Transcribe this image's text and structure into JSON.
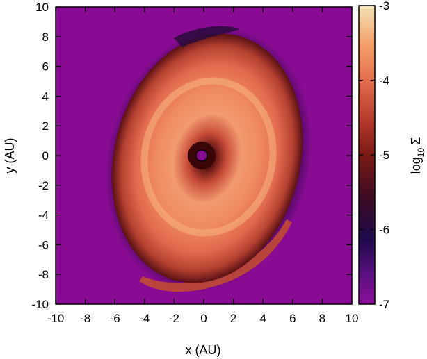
{
  "chart_data": {
    "type": "heatmap",
    "title": "",
    "xlabel": "x (AU)",
    "ylabel": "y (AU)",
    "xlim": [
      -10,
      10
    ],
    "ylim": [
      -10,
      10
    ],
    "x_ticks": [
      "-10",
      "-8",
      "-6",
      "-4",
      "-2",
      "0",
      "2",
      "4",
      "6",
      "8",
      "10"
    ],
    "y_ticks": [
      "10",
      "8",
      "6",
      "4",
      "2",
      "0",
      "-2",
      "-4",
      "-6",
      "-8",
      "-10"
    ],
    "colorbar": {
      "label_prefix": "log",
      "label_sub": "10",
      "label_symbol": "Σ",
      "range": [
        -7,
        -3
      ],
      "ticks": [
        "-3",
        "-4",
        "-5",
        "-6",
        "-7"
      ],
      "colormap": [
        "#8a0b93",
        "#2b0a5e",
        "#7a1a14",
        "#d2543a",
        "#f4956a",
        "#f6cc8c",
        "#f3e3b8"
      ]
    },
    "features": {
      "central_hole_center": [
        -0.2,
        0.0
      ],
      "central_hole_radius": 0.35,
      "background_value": -6.6,
      "disk_peak_value": -3.9
    },
    "grid": false,
    "legend": "none"
  }
}
